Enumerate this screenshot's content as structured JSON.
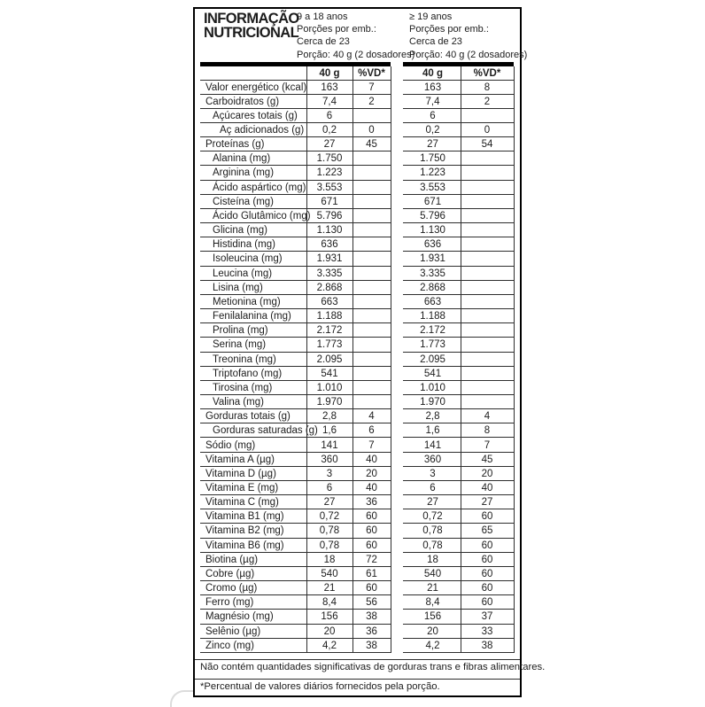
{
  "title": {
    "line1": "INFORMAÇÃO",
    "line2": "NUTRICIONAL"
  },
  "groups": [
    {
      "age": "9 a 18 anos",
      "portions_line": "Porções por emb.:",
      "portions_count": "Cerca de 23",
      "portion_size": "Porção: 40 g (2 dosadores)",
      "col_qty": "40 g",
      "col_vd": "%VD*"
    },
    {
      "age": "≥ 19 anos",
      "portions_line": "Porções por emb.:",
      "portions_count": "Cerca de 23",
      "portion_size": "Porção: 40 g (2 dosadores)",
      "col_qty": "40 g",
      "col_vd": "%VD*"
    }
  ],
  "rows": [
    {
      "label": "Valor energético (kcal)",
      "indent": 0,
      "q1": "163",
      "vd1": "7",
      "q2": "163",
      "vd2": "8"
    },
    {
      "label": "Carboidratos (g)",
      "indent": 0,
      "q1": "7,4",
      "vd1": "2",
      "q2": "7,4",
      "vd2": "2"
    },
    {
      "label": "Açúcares totais (g)",
      "indent": 1,
      "q1": "6",
      "vd1": "",
      "q2": "6",
      "vd2": ""
    },
    {
      "label": "Aç adicionados (g)",
      "indent": 2,
      "q1": "0,2",
      "vd1": "0",
      "q2": "0,2",
      "vd2": "0"
    },
    {
      "label": "Proteínas (g)",
      "indent": 0,
      "q1": "27",
      "vd1": "45",
      "q2": "27",
      "vd2": "54"
    },
    {
      "label": "Alanina (mg)",
      "indent": 1,
      "q1": "1.750",
      "vd1": "",
      "q2": "1.750",
      "vd2": ""
    },
    {
      "label": "Arginina (mg)",
      "indent": 1,
      "q1": "1.223",
      "vd1": "",
      "q2": "1.223",
      "vd2": ""
    },
    {
      "label": "Ácido aspártico (mg)",
      "indent": 1,
      "q1": "3.553",
      "vd1": "",
      "q2": "3.553",
      "vd2": ""
    },
    {
      "label": "Cisteína (mg)",
      "indent": 1,
      "q1": "671",
      "vd1": "",
      "q2": "671",
      "vd2": ""
    },
    {
      "label": "Ácido Glutâmico (mg)",
      "indent": 1,
      "q1": "5.796",
      "vd1": "",
      "q2": "5.796",
      "vd2": ""
    },
    {
      "label": "Glicina (mg)",
      "indent": 1,
      "q1": "1.130",
      "vd1": "",
      "q2": "1.130",
      "vd2": ""
    },
    {
      "label": "Histidina (mg)",
      "indent": 1,
      "q1": "636",
      "vd1": "",
      "q2": "636",
      "vd2": ""
    },
    {
      "label": "Isoleucina (mg)",
      "indent": 1,
      "q1": "1.931",
      "vd1": "",
      "q2": "1.931",
      "vd2": ""
    },
    {
      "label": "Leucina (mg)",
      "indent": 1,
      "q1": "3.335",
      "vd1": "",
      "q2": "3.335",
      "vd2": ""
    },
    {
      "label": "Lisina (mg)",
      "indent": 1,
      "q1": "2.868",
      "vd1": "",
      "q2": "2.868",
      "vd2": ""
    },
    {
      "label": "Metionina (mg)",
      "indent": 1,
      "q1": "663",
      "vd1": "",
      "q2": "663",
      "vd2": ""
    },
    {
      "label": "Fenilalanina (mg)",
      "indent": 1,
      "q1": "1.188",
      "vd1": "",
      "q2": "1.188",
      "vd2": ""
    },
    {
      "label": "Prolina (mg)",
      "indent": 1,
      "q1": "2.172",
      "vd1": "",
      "q2": "2.172",
      "vd2": ""
    },
    {
      "label": "Serina (mg)",
      "indent": 1,
      "q1": "1.773",
      "vd1": "",
      "q2": "1.773",
      "vd2": ""
    },
    {
      "label": "Treonina (mg)",
      "indent": 1,
      "q1": "2.095",
      "vd1": "",
      "q2": "2.095",
      "vd2": ""
    },
    {
      "label": "Triptofano (mg)",
      "indent": 1,
      "q1": "541",
      "vd1": "",
      "q2": "541",
      "vd2": ""
    },
    {
      "label": "Tirosina (mg)",
      "indent": 1,
      "q1": "1.010",
      "vd1": "",
      "q2": "1.010",
      "vd2": ""
    },
    {
      "label": "Valina (mg)",
      "indent": 1,
      "q1": "1.970",
      "vd1": "",
      "q2": "1.970",
      "vd2": ""
    },
    {
      "label": "Gorduras totais (g)",
      "indent": 0,
      "q1": "2,8",
      "vd1": "4",
      "q2": "2,8",
      "vd2": "4"
    },
    {
      "label": "Gorduras saturadas (g)",
      "indent": 1,
      "q1": "1,6",
      "vd1": "6",
      "q2": "1,6",
      "vd2": "8"
    },
    {
      "label": "Sódio (mg)",
      "indent": 0,
      "q1": "141",
      "vd1": "7",
      "q2": "141",
      "vd2": "7"
    },
    {
      "label": "Vitamina A (µg)",
      "indent": 0,
      "q1": "360",
      "vd1": "40",
      "q2": "360",
      "vd2": "45"
    },
    {
      "label": "Vitamina D (µg)",
      "indent": 0,
      "q1": "3",
      "vd1": "20",
      "q2": "3",
      "vd2": "20"
    },
    {
      "label": "Vitamina E (mg)",
      "indent": 0,
      "q1": "6",
      "vd1": "40",
      "q2": "6",
      "vd2": "40"
    },
    {
      "label": "Vitamina C (mg)",
      "indent": 0,
      "q1": "27",
      "vd1": "36",
      "q2": "27",
      "vd2": "27"
    },
    {
      "label": "Vitamina B1 (mg)",
      "indent": 0,
      "q1": "0,72",
      "vd1": "60",
      "q2": "0,72",
      "vd2": "60"
    },
    {
      "label": "Vitamina B2 (mg)",
      "indent": 0,
      "q1": "0,78",
      "vd1": "60",
      "q2": "0,78",
      "vd2": "65"
    },
    {
      "label": "Vitamina B6 (mg)",
      "indent": 0,
      "q1": "0,78",
      "vd1": "60",
      "q2": "0,78",
      "vd2": "60"
    },
    {
      "label": "Biotina (µg)",
      "indent": 0,
      "q1": "18",
      "vd1": "72",
      "q2": "18",
      "vd2": "60"
    },
    {
      "label": "Cobre (µg)",
      "indent": 0,
      "q1": "540",
      "vd1": "61",
      "q2": "540",
      "vd2": "60"
    },
    {
      "label": "Cromo (µg)",
      "indent": 0,
      "q1": "21",
      "vd1": "60",
      "q2": "21",
      "vd2": "60"
    },
    {
      "label": "Ferro (mg)",
      "indent": 0,
      "q1": "8,4",
      "vd1": "56",
      "q2": "8,4",
      "vd2": "60"
    },
    {
      "label": "Magnésio (mg)",
      "indent": 0,
      "q1": "156",
      "vd1": "38",
      "q2": "156",
      "vd2": "37"
    },
    {
      "label": "Selênio (µg)",
      "indent": 0,
      "q1": "20",
      "vd1": "36",
      "q2": "20",
      "vd2": "33"
    },
    {
      "label": "Zinco (mg)",
      "indent": 0,
      "q1": "4,2",
      "vd1": "38",
      "q2": "4,2",
      "vd2": "38"
    }
  ],
  "footnotes": {
    "line1": "Não contém quantidades significativas de gorduras trans e fibras alimentares.",
    "line2": "*Percentual de valores diários fornecidos pela porção."
  },
  "colors": {
    "border": "#000000",
    "grid": "#2e2e2e",
    "text": "#1c1c1c"
  }
}
